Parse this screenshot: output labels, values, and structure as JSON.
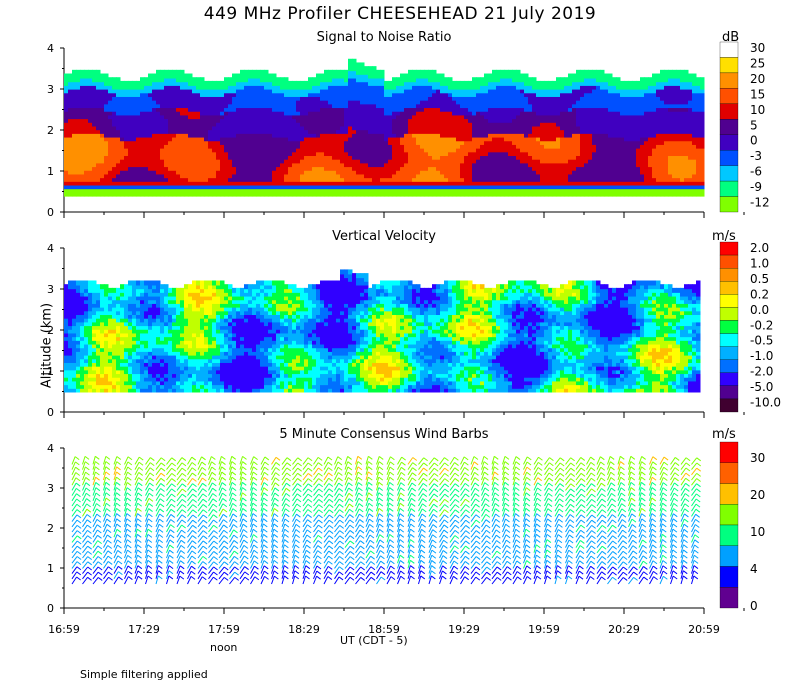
{
  "title": "449 MHz Profiler CHEESEHEAD 21 July 2019",
  "y_axis_label": "Altitude (km)",
  "x_axis_label": "UT  (CDT - 5)",
  "noon_label": "noon",
  "footnote": "Simple filtering applied",
  "colors": {
    "snr": [
      "#80ff00",
      "#00ff80",
      "#00c8ff",
      "#0050ff",
      "#4000c0",
      "#500090",
      "#e00000",
      "#ff5000",
      "#ff9000",
      "#ffe000",
      "#ffffff"
    ],
    "vv": [
      "#400030",
      "#500090",
      "#3000ff",
      "#0070ff",
      "#00b0ff",
      "#00ffff",
      "#00ff40",
      "#c0ff00",
      "#ffff00",
      "#ffc000",
      "#ff9000",
      "#ff5000",
      "#ff0000"
    ],
    "wind": [
      "#600090",
      "#0000ff",
      "#00a0ff",
      "#00ff80",
      "#80ff00",
      "#ffc000",
      "#ff6000",
      "#ff0000"
    ]
  },
  "chart_data": [
    {
      "type": "heatmap",
      "title": "Signal to Noise Ratio",
      "units": "dB",
      "ylim": [
        0,
        4
      ],
      "yticks": [
        "0",
        "1",
        "2",
        "3",
        "4"
      ],
      "x_range_ut": [
        "16:59",
        "20:59"
      ],
      "colorbar_labels": [
        "30",
        "25",
        "20",
        "15",
        "10",
        "5",
        "0",
        "-3",
        "-6",
        "-9",
        "-12"
      ],
      "description_values": "SNR strongest (10-20 dB) below ~2 km, weak returns near top ~3.5 km"
    },
    {
      "type": "heatmap",
      "title": "Vertical Velocity",
      "units": "m/s",
      "ylim": [
        0,
        4
      ],
      "yticks": [
        "0",
        "1",
        "2",
        "3",
        "4"
      ],
      "x_range_ut": [
        "16:59",
        "20:59"
      ],
      "colorbar_labels": [
        "2.0",
        "1.0",
        "0.5",
        "0.2",
        "0.0",
        "-0.2",
        "-0.5",
        "-1.0",
        "-2.0",
        "-5.0",
        "-10.0"
      ]
    },
    {
      "type": "scatter",
      "title": "5 Minute Consensus Wind Barbs",
      "units": "m/s",
      "ylim": [
        0,
        4
      ],
      "yticks": [
        "0",
        "1",
        "2",
        "3",
        "4"
      ],
      "x_range_ut": [
        "16:59",
        "20:59"
      ],
      "colorbar_labels": [
        "30",
        "20",
        "10",
        "4",
        "0"
      ]
    }
  ],
  "x_ticks": [
    "16:59",
    "17:29",
    "17:59",
    "18:29",
    "18:59",
    "19:29",
    "19:59",
    "20:29",
    "20:59"
  ]
}
